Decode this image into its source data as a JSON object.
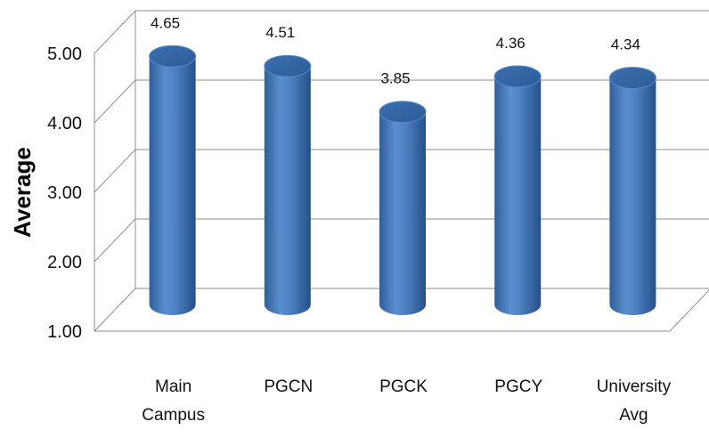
{
  "chart_data": {
    "type": "bar",
    "categories": [
      "Main Campus",
      "PGCN",
      "PGCK",
      "PGCY",
      "University Avg"
    ],
    "category_lines": [
      [
        "Main",
        "Campus"
      ],
      [
        "PGCN"
      ],
      [
        "PGCK"
      ],
      [
        "PGCY"
      ],
      [
        "University",
        "Avg"
      ]
    ],
    "values": [
      4.65,
      4.51,
      3.85,
      4.36,
      4.34
    ],
    "data_labels": [
      "4.65",
      "4.51",
      "3.85",
      "4.36",
      "4.34"
    ],
    "ylabel": "Average",
    "ylim": [
      1.0,
      5.0
    ],
    "yticks": [
      "1.00",
      "2.00",
      "3.00",
      "4.00",
      "5.00"
    ],
    "grid": true,
    "bar_color": "#4F81BD",
    "bar_style": "3d-cylinder"
  }
}
